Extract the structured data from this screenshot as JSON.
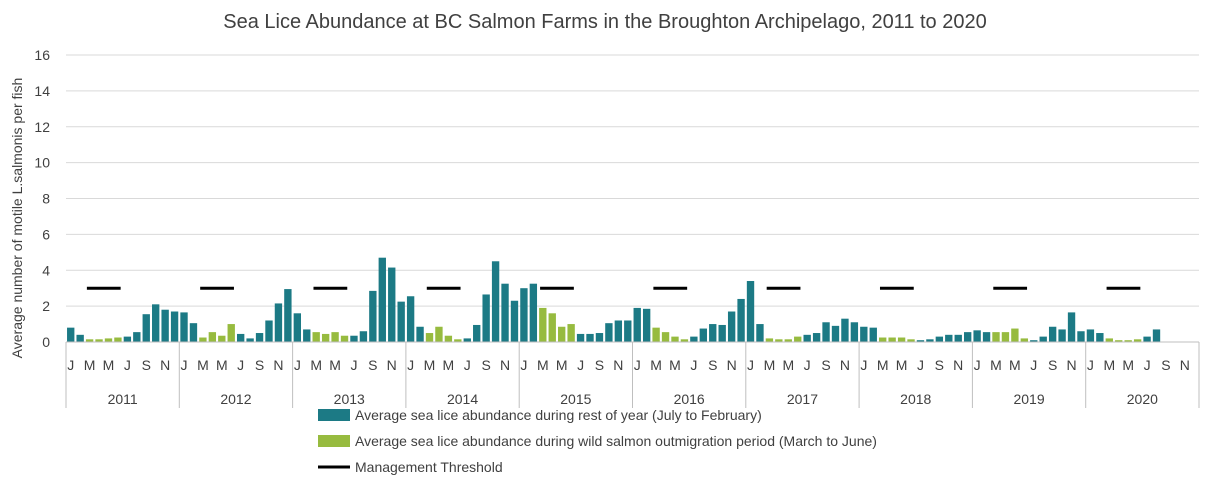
{
  "colors": {
    "rest_of_year": "#1c7a85",
    "outmigration": "#97bb3f",
    "threshold": "#000000",
    "grid": "#d9d9d9",
    "axis_text": "#404040"
  },
  "chart_data": {
    "type": "bar",
    "title": "Sea Lice Abundance at BC Salmon Farms in the Broughton Archipelago, 2011 to 2020",
    "xlabel": "",
    "ylabel": "Average number of motile L.salmonis per fish",
    "ylim": [
      0,
      16
    ],
    "yticks": [
      0,
      2,
      4,
      6,
      8,
      10,
      12,
      14,
      16
    ],
    "grid": true,
    "legend_position": "bottom",
    "month_tick_labels": [
      "J",
      "M",
      "M",
      "J",
      "S",
      "N"
    ],
    "years": [
      "2011",
      "2012",
      "2013",
      "2014",
      "2015",
      "2016",
      "2017",
      "2018",
      "2019",
      "2020"
    ],
    "series": [
      {
        "name": "Average sea lice abundance during rest of year (July to February)",
        "color_key": "rest_of_year",
        "months": "Jul-Feb"
      },
      {
        "name": "Average sea lice abundance during wild salmon outmigration period (March to June)",
        "color_key": "outmigration",
        "months": "Mar-Jun"
      },
      {
        "name": "Management Threshold",
        "color_key": "threshold",
        "value": 3,
        "months": "Mar-Jun"
      }
    ],
    "monthly_values": [
      [
        0.8,
        0.4,
        0.15,
        0.15,
        0.2,
        0.25,
        0.3,
        0.55,
        1.55,
        2.1,
        1.8,
        1.7
      ],
      [
        1.65,
        1.05,
        0.25,
        0.55,
        0.35,
        1.0,
        0.45,
        0.2,
        0.5,
        1.2,
        2.15,
        2.95
      ],
      [
        1.6,
        0.7,
        0.55,
        0.45,
        0.55,
        0.35,
        0.35,
        0.6,
        2.85,
        4.7,
        4.15,
        2.25
      ],
      [
        2.55,
        0.85,
        0.5,
        0.85,
        0.35,
        0.15,
        0.2,
        0.95,
        2.65,
        4.5,
        3.25,
        2.3
      ],
      [
        3.0,
        3.25,
        1.9,
        1.6,
        0.85,
        1.0,
        0.45,
        0.45,
        0.5,
        1.05,
        1.2,
        1.2
      ],
      [
        1.9,
        1.85,
        0.8,
        0.55,
        0.3,
        0.15,
        0.3,
        0.75,
        1.0,
        0.95,
        1.7,
        2.4
      ],
      [
        3.4,
        1.0,
        0.2,
        0.15,
        0.15,
        0.3,
        0.4,
        0.5,
        1.1,
        0.9,
        1.3,
        1.1
      ],
      [
        0.85,
        0.8,
        0.25,
        0.25,
        0.25,
        0.15,
        0.1,
        0.15,
        0.3,
        0.4,
        0.4,
        0.55
      ],
      [
        0.65,
        0.55,
        0.55,
        0.55,
        0.75,
        0.2,
        0.1,
        0.3,
        0.85,
        0.7,
        1.65,
        0.6
      ],
      [
        0.7,
        0.5,
        0.2,
        0.1,
        0.1,
        0.15,
        0.3,
        0.7,
        null,
        null,
        null,
        null
      ]
    ]
  }
}
